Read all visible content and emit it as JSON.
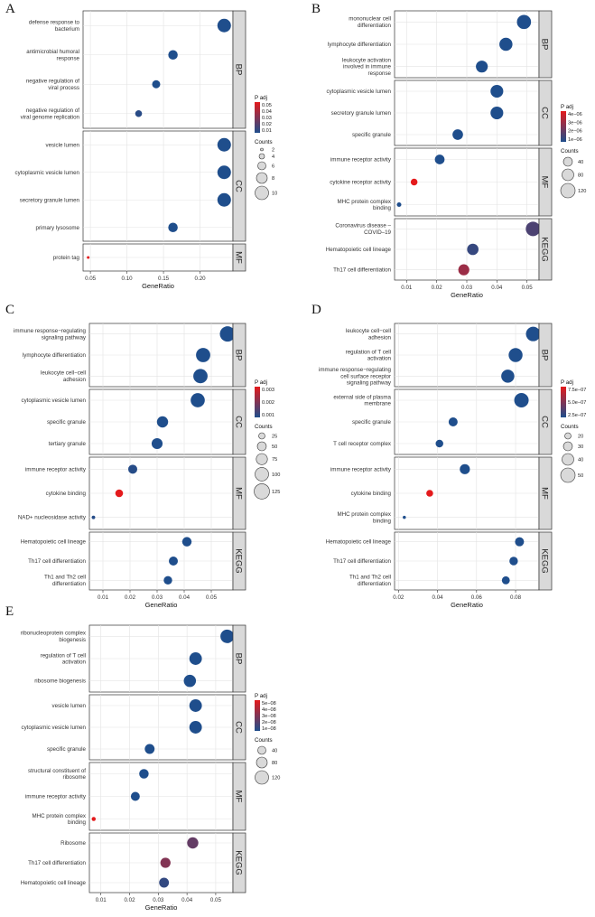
{
  "chart_data": [
    {
      "type": "scatter",
      "panel_label": "A",
      "xlabel": "GeneRatio",
      "xlim": [
        0.04,
        0.245
      ],
      "xticks": [
        0.05,
        0.1,
        0.15,
        0.2
      ],
      "xtick_labels": [
        "0.05",
        "0.10",
        "0.15",
        "0.20"
      ],
      "facets": [
        {
          "name": "BP",
          "terms": [
            {
              "label": "defense response to bacterium",
              "gene_ratio": 0.233,
              "count": 10,
              "p_adj": 0.002
            },
            {
              "label": "antimicrobial humoral response",
              "gene_ratio": 0.163,
              "count": 7,
              "p_adj": 0.008
            },
            {
              "label": "negative regulation of viral process",
              "gene_ratio": 0.14,
              "count": 6,
              "p_adj": 0.01
            },
            {
              "label": "negative regulation of viral genome replication",
              "gene_ratio": 0.116,
              "count": 5,
              "p_adj": 0.012
            }
          ]
        },
        {
          "name": "CC",
          "terms": [
            {
              "label": "vesicle lumen",
              "gene_ratio": 0.233,
              "count": 10,
              "p_adj": 0.004
            },
            {
              "label": "cytoplasmic vesicle lumen",
              "gene_ratio": 0.233,
              "count": 10,
              "p_adj": 0.004
            },
            {
              "label": "secretory granule lumen",
              "gene_ratio": 0.233,
              "count": 10,
              "p_adj": 0.003
            },
            {
              "label": "primary lysosome",
              "gene_ratio": 0.163,
              "count": 7,
              "p_adj": 0.01
            }
          ]
        },
        {
          "name": "MF",
          "terms": [
            {
              "label": "protein tag",
              "gene_ratio": 0.047,
              "count": 2,
              "p_adj": 0.05
            }
          ]
        }
      ],
      "legend": {
        "color_title": "P adj",
        "color_range": [
          0.01,
          0.05
        ],
        "color_ticks": [
          "0.05",
          "0.04",
          "0.03",
          "0.02",
          "0.01"
        ],
        "size_title": "Counts",
        "sizes": [
          2,
          4,
          6,
          8,
          10
        ],
        "size_labels": [
          "2",
          "4",
          "6",
          "8",
          "10"
        ]
      }
    },
    {
      "type": "scatter",
      "panel_label": "B",
      "xlabel": "GeneRatio",
      "xlim": [
        0.006,
        0.054
      ],
      "xticks": [
        0.01,
        0.02,
        0.03,
        0.04,
        0.05
      ],
      "xtick_labels": [
        "0.01",
        "0.02",
        "0.03",
        "0.04",
        "0.05"
      ],
      "facets": [
        {
          "name": "BP",
          "terms": [
            {
              "label": "mononuclear cell differentiation",
              "gene_ratio": 0.049,
              "count": 115,
              "p_adj": 1e-06
            },
            {
              "label": "lymphocyte differentiation",
              "gene_ratio": 0.043,
              "count": 100,
              "p_adj": 1e-06
            },
            {
              "label": "leukocyte activation involved in immune response",
              "gene_ratio": 0.035,
              "count": 82,
              "p_adj": 1e-06
            }
          ]
        },
        {
          "name": "CC",
          "terms": [
            {
              "label": "cytoplasmic vesicle lumen",
              "gene_ratio": 0.04,
              "count": 95,
              "p_adj": 1e-06
            },
            {
              "label": "secretory granule lumen",
              "gene_ratio": 0.04,
              "count": 95,
              "p_adj": 1e-06
            },
            {
              "label": "specific granule",
              "gene_ratio": 0.027,
              "count": 62,
              "p_adj": 1e-06
            }
          ]
        },
        {
          "name": "MF",
          "terms": [
            {
              "label": "immune receptor activity",
              "gene_ratio": 0.021,
              "count": 50,
              "p_adj": 1e-06
            },
            {
              "label": "cytokine receptor activity",
              "gene_ratio": 0.0125,
              "count": 30,
              "p_adj": 4.5e-06
            },
            {
              "label": "MHC protein complex binding",
              "gene_ratio": 0.0075,
              "count": 12,
              "p_adj": 1e-06
            }
          ]
        },
        {
          "name": "KEGG",
          "terms": [
            {
              "label": "Coronavirus disease – COVID–19",
              "gene_ratio": 0.052,
              "count": 120,
              "p_adj": 1.8e-06
            },
            {
              "label": "Hematopoietic cell lineage",
              "gene_ratio": 0.032,
              "count": 75,
              "p_adj": 1.4e-06
            },
            {
              "label": "Th17 cell differentiation",
              "gene_ratio": 0.029,
              "count": 70,
              "p_adj": 3.2e-06
            }
          ]
        }
      ],
      "legend": {
        "color_title": "P adj",
        "color_range": [
          1e-06,
          4.5e-06
        ],
        "color_ticks": [
          "4e−06",
          "3e−06",
          "2e−06",
          "1e−06"
        ],
        "size_title": "Counts",
        "sizes": [
          40,
          80,
          120
        ],
        "size_labels": [
          "40",
          "80",
          "120"
        ]
      }
    },
    {
      "type": "scatter",
      "panel_label": "C",
      "xlabel": "GeneRatio",
      "xlim": [
        0.005,
        0.058
      ],
      "xticks": [
        0.01,
        0.02,
        0.03,
        0.04,
        0.05
      ],
      "xtick_labels": [
        "0.01",
        "0.02",
        "0.03",
        "0.04",
        "0.05"
      ],
      "facets": [
        {
          "name": "BP",
          "terms": [
            {
              "label": "immune response−regulating signaling pathway",
              "gene_ratio": 0.056,
              "count": 135,
              "p_adj": 0.0001
            },
            {
              "label": "lymphocyte differentiation",
              "gene_ratio": 0.047,
              "count": 110,
              "p_adj": 0.0001
            },
            {
              "label": "leukocyte cell−cell adhesion",
              "gene_ratio": 0.046,
              "count": 110,
              "p_adj": 0.0001
            }
          ]
        },
        {
          "name": "CC",
          "terms": [
            {
              "label": "cytoplasmic vesicle lumen",
              "gene_ratio": 0.045,
              "count": 108,
              "p_adj": 0.0001
            },
            {
              "label": "specific granule",
              "gene_ratio": 0.032,
              "count": 75,
              "p_adj": 0.0001
            },
            {
              "label": "tertiary granule",
              "gene_ratio": 0.03,
              "count": 72,
              "p_adj": 0.0001
            }
          ]
        },
        {
          "name": "MF",
          "terms": [
            {
              "label": "immune receptor activity",
              "gene_ratio": 0.021,
              "count": 50,
              "p_adj": 0.0002
            },
            {
              "label": "cytokine binding",
              "gene_ratio": 0.016,
              "count": 38,
              "p_adj": 0.003
            },
            {
              "label": "NAD+ nucleosidase activity",
              "gene_ratio": 0.0065,
              "count": 14,
              "p_adj": 0.0002
            }
          ]
        },
        {
          "name": "KEGG",
          "terms": [
            {
              "label": "Hematopoietic cell lineage",
              "gene_ratio": 0.041,
              "count": 55,
              "p_adj": 0.0001
            },
            {
              "label": "Th17 cell differentiation",
              "gene_ratio": 0.036,
              "count": 50,
              "p_adj": 0.0001
            },
            {
              "label": "Th1 and Th2 cell differentiation",
              "gene_ratio": 0.034,
              "count": 45,
              "p_adj": 0.0001
            }
          ]
        }
      ],
      "legend": {
        "color_title": "P adj",
        "color_range": [
          0.0001,
          0.003
        ],
        "color_ticks": [
          "0.003",
          "0.002",
          "0.001"
        ],
        "size_title": "Counts",
        "sizes": [
          25,
          50,
          75,
          100,
          125
        ],
        "size_labels": [
          "25",
          "50",
          "75",
          "100",
          "125"
        ]
      }
    },
    {
      "type": "scatter",
      "panel_label": "D",
      "xlabel": "GeneRatio",
      "xlim": [
        0.018,
        0.092
      ],
      "xticks": [
        0.02,
        0.04,
        0.06,
        0.08
      ],
      "xtick_labels": [
        "0.02",
        "0.04",
        "0.06",
        "0.08"
      ],
      "facets": [
        {
          "name": "BP",
          "terms": [
            {
              "label": "leukocyte cell−cell adhesion",
              "gene_ratio": 0.089,
              "count": 55,
              "p_adj": 5e-08
            },
            {
              "label": "regulation of T cell activation",
              "gene_ratio": 0.08,
              "count": 48,
              "p_adj": 5e-08
            },
            {
              "label": "immune response−regulating cell surface receptor signaling pathway",
              "gene_ratio": 0.076,
              "count": 45,
              "p_adj": 5e-08
            }
          ]
        },
        {
          "name": "CC",
          "terms": [
            {
              "label": "external side of plasma membrane",
              "gene_ratio": 0.083,
              "count": 52,
              "p_adj": 5e-08
            },
            {
              "label": "specific granule",
              "gene_ratio": 0.048,
              "count": 30,
              "p_adj": 5e-08
            },
            {
              "label": "T cell receptor complex",
              "gene_ratio": 0.041,
              "count": 25,
              "p_adj": 5e-08
            }
          ]
        },
        {
          "name": "MF",
          "terms": [
            {
              "label": "immune receptor activity",
              "gene_ratio": 0.054,
              "count": 34,
              "p_adj": 5e-08
            },
            {
              "label": "cytokine binding",
              "gene_ratio": 0.036,
              "count": 22,
              "p_adj": 8e-07
            },
            {
              "label": "MHC protein complex binding",
              "gene_ratio": 0.023,
              "count": 10,
              "p_adj": 5e-08
            }
          ]
        },
        {
          "name": "KEGG",
          "terms": [
            {
              "label": "Hematopoietic cell lineage",
              "gene_ratio": 0.082,
              "count": 30,
              "p_adj": 5e-08
            },
            {
              "label": "Th17 cell differentiation",
              "gene_ratio": 0.079,
              "count": 28,
              "p_adj": 5e-08
            },
            {
              "label": "Th1 and Th2 cell differentiation",
              "gene_ratio": 0.075,
              "count": 26,
              "p_adj": 5e-08
            }
          ]
        }
      ],
      "legend": {
        "color_title": "P adj",
        "color_range": [
          5e-08,
          8e-07
        ],
        "color_ticks": [
          "7.5e−07",
          "5.0e−07",
          "2.5e−07"
        ],
        "size_title": "Counts",
        "sizes": [
          20,
          30,
          40,
          50
        ],
        "size_labels": [
          "20",
          "30",
          "40",
          "50"
        ]
      }
    },
    {
      "type": "scatter",
      "panel_label": "E",
      "xlabel": "GeneRatio",
      "xlim": [
        0.006,
        0.056
      ],
      "xticks": [
        0.01,
        0.02,
        0.03,
        0.04,
        0.05
      ],
      "xtick_labels": [
        "0.01",
        "0.02",
        "0.03",
        "0.04",
        "0.05"
      ],
      "facets": [
        {
          "name": "BP",
          "terms": [
            {
              "label": "ribonucleoprotein complex biogenesis",
              "gene_ratio": 0.054,
              "count": 130,
              "p_adj": 1e-08
            },
            {
              "label": "regulation of T cell activation",
              "gene_ratio": 0.043,
              "count": 105,
              "p_adj": 1e-08
            },
            {
              "label": "ribosome biogenesis",
              "gene_ratio": 0.041,
              "count": 100,
              "p_adj": 1e-08
            }
          ]
        },
        {
          "name": "CC",
          "terms": [
            {
              "label": "vesicle lumen",
              "gene_ratio": 0.043,
              "count": 105,
              "p_adj": 1e-08
            },
            {
              "label": "cytoplasmic vesicle lumen",
              "gene_ratio": 0.043,
              "count": 105,
              "p_adj": 1e-08
            },
            {
              "label": "specific granule",
              "gene_ratio": 0.027,
              "count": 65,
              "p_adj": 1e-08
            }
          ]
        },
        {
          "name": "MF",
          "terms": [
            {
              "label": "structural constituent of ribosome",
              "gene_ratio": 0.025,
              "count": 60,
              "p_adj": 1e-08
            },
            {
              "label": "immune receptor activity",
              "gene_ratio": 0.022,
              "count": 52,
              "p_adj": 1e-08
            },
            {
              "label": "MHC protein complex binding",
              "gene_ratio": 0.0075,
              "count": 18,
              "p_adj": 5e-08
            }
          ]
        },
        {
          "name": "KEGG",
          "terms": [
            {
              "label": "Ribosome",
              "gene_ratio": 0.042,
              "count": 85,
              "p_adj": 2.4e-08
            },
            {
              "label": "Th17 cell differentiation",
              "gene_ratio": 0.0325,
              "count": 70,
              "p_adj": 3e-08
            },
            {
              "label": "Hematopoietic cell lineage",
              "gene_ratio": 0.032,
              "count": 65,
              "p_adj": 1.4e-08
            }
          ]
        }
      ],
      "legend": {
        "color_title": "P adj",
        "color_range": [
          1e-08,
          5e-08
        ],
        "color_ticks": [
          "5e−08",
          "4e−08",
          "3e−08",
          "2e−08",
          "1e−08"
        ],
        "size_title": "Counts",
        "sizes": [
          40,
          80,
          120
        ],
        "size_labels": [
          "40",
          "80",
          "120"
        ]
      }
    }
  ]
}
